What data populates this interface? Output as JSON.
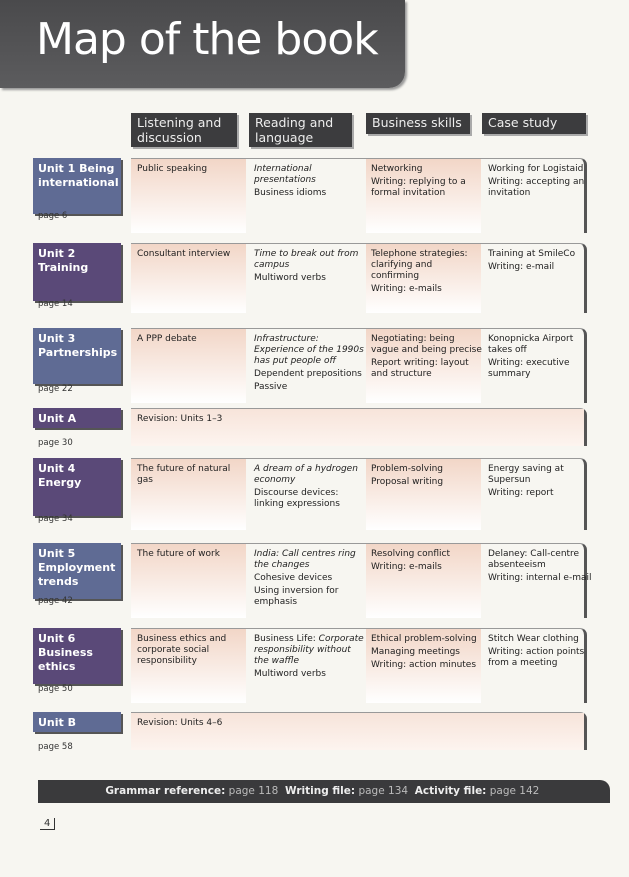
{
  "title": "Map of the book",
  "headers": [
    "Listening and discussion",
    "Reading and language",
    "Business skills",
    "Case study"
  ],
  "units": [
    {
      "label": "Unit 1 Being international",
      "page": "page 6",
      "color": "#5f6b94",
      "cells": [
        [
          {
            "t": "Public speaking"
          }
        ],
        [
          {
            "t": "International presentations",
            "i": true
          },
          {
            "t": "Business idioms"
          }
        ],
        [
          {
            "t": "Networking"
          },
          {
            "t": "Writing: replying to a formal invitation"
          }
        ],
        [
          {
            "t": "Working for Logistaid"
          },
          {
            "t": "Writing: accepting an invitation"
          }
        ]
      ]
    },
    {
      "label": "Unit 2 Training",
      "page": "page 14",
      "color": "#5a4978",
      "cells": [
        [
          {
            "t": "Consultant interview"
          }
        ],
        [
          {
            "t": "Time to break out from campus",
            "i": true
          },
          {
            "t": "Multiword verbs"
          }
        ],
        [
          {
            "t": "Telephone strategies: clarifying and confirming"
          },
          {
            "t": "Writing: e-mails"
          }
        ],
        [
          {
            "t": "Training at SmileCo"
          },
          {
            "t": "Writing: e-mail"
          }
        ]
      ]
    },
    {
      "label": "Unit 3 Partnerships",
      "page": "page 22",
      "color": "#5f6b94",
      "cells": [
        [
          {
            "t": "A PPP debate"
          }
        ],
        [
          {
            "t": "Infrastructure: Experience of the 1990s has put people off",
            "i": true
          },
          {
            "t": "Dependent prepositions"
          },
          {
            "t": "Passive"
          }
        ],
        [
          {
            "t": "Negotiating: being vague and being precise"
          },
          {
            "t": "Report writing: layout and structure"
          }
        ],
        [
          {
            "t": "Konopnicka Airport takes off"
          },
          {
            "t": "Writing: executive summary"
          }
        ]
      ]
    },
    {
      "label": "Unit A",
      "page": "page 30",
      "color": "#5a4978",
      "revision": "Revision: Units 1–3"
    },
    {
      "label": "Unit 4 Energy",
      "page": "page 34",
      "color": "#5a4978",
      "cells": [
        [
          {
            "t": "The future of natural gas"
          }
        ],
        [
          {
            "t": "A dream of a hydrogen economy",
            "i": true
          },
          {
            "t": "Discourse devices: linking expressions"
          }
        ],
        [
          {
            "t": "Problem-solving"
          },
          {
            "t": "Proposal writing"
          }
        ],
        [
          {
            "t": "Energy saving at Supersun"
          },
          {
            "t": "Writing: report"
          }
        ]
      ]
    },
    {
      "label": "Unit 5 Employment trends",
      "page": "page 42",
      "color": "#5f6b94",
      "cells": [
        [
          {
            "t": "The future of work"
          }
        ],
        [
          {
            "t": "India: Call centres ring the changes",
            "i": true
          },
          {
            "t": "Cohesive devices"
          },
          {
            "t": "Using inversion for emphasis"
          }
        ],
        [
          {
            "t": "Resolving conflict"
          },
          {
            "t": "Writing: e-mails"
          }
        ],
        [
          {
            "t": "Delaney: Call-centre absenteeism"
          },
          {
            "t": "Writing: internal e-mail"
          }
        ]
      ]
    },
    {
      "label": "Unit 6 Business ethics",
      "page": "page 50",
      "color": "#5a4978",
      "cells": [
        [
          {
            "t": "Business ethics and corporate social responsibility"
          }
        ],
        [
          {
            "t": "Business Life: ",
            "t2": "Corporate responsibility without the waffle"
          },
          {
            "t": "Multiword verbs"
          }
        ],
        [
          {
            "t": "Ethical problem-solving"
          },
          {
            "t": "Managing meetings"
          },
          {
            "t": "Writing: action minutes"
          }
        ],
        [
          {
            "t": "Stitch Wear clothing"
          },
          {
            "t": "Writing: action points from a meeting"
          }
        ]
      ]
    },
    {
      "label": "Unit B",
      "page": "page 58",
      "color": "#5f6b94",
      "revision": "Revision: Units 4–6"
    }
  ],
  "footer": [
    {
      "label": "Grammar reference:",
      "page": "page 118"
    },
    {
      "label": "Writing file:",
      "page": "page 134"
    },
    {
      "label": "Activity file:",
      "page": "page 142"
    }
  ],
  "page_number": "4"
}
